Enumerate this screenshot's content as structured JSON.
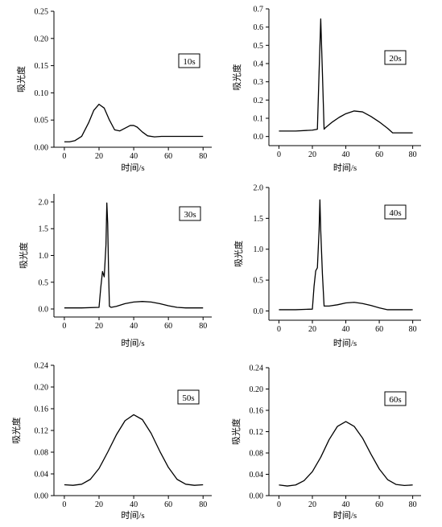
{
  "chart_data": [
    {
      "type": "line",
      "annotation": "10s",
      "xlabel": "时间/s",
      "ylabel": "吸光度",
      "xlim": [
        -6,
        85
      ],
      "ylim": [
        0,
        0.25
      ],
      "xticks": [
        0,
        20,
        40,
        60,
        80
      ],
      "yticks": [
        0.0,
        0.05,
        0.1,
        0.15,
        0.2,
        0.25
      ],
      "ytick_labels": [
        "0.00",
        "0.05",
        "0.10",
        "0.15",
        "0.20",
        "0.25"
      ],
      "series": [
        {
          "x": [
            0,
            3,
            6,
            10,
            14,
            17,
            20,
            23,
            26,
            29,
            32,
            35,
            38,
            40,
            42,
            45,
            48,
            52,
            56,
            60,
            70,
            80
          ],
          "y": [
            0.01,
            0.01,
            0.012,
            0.02,
            0.045,
            0.068,
            0.079,
            0.072,
            0.05,
            0.032,
            0.03,
            0.035,
            0.04,
            0.04,
            0.037,
            0.028,
            0.021,
            0.019,
            0.02,
            0.02,
            0.02,
            0.02
          ]
        }
      ]
    },
    {
      "type": "line",
      "annotation": "20s",
      "xlabel": "时间/s",
      "ylabel": "吸光度",
      "xlim": [
        -6,
        85
      ],
      "ylim": [
        -0.05,
        0.7
      ],
      "xticks": [
        0,
        20,
        40,
        60,
        80
      ],
      "yticks": [
        0.0,
        0.1,
        0.2,
        0.3,
        0.4,
        0.5,
        0.6,
        0.7
      ],
      "ytick_labels": [
        "0.0",
        "0.1",
        "0.2",
        "0.3",
        "0.4",
        "0.5",
        "0.6",
        "0.7"
      ],
      "series": [
        {
          "x": [
            0,
            10,
            20,
            23,
            24,
            25,
            26,
            27,
            28,
            32,
            36,
            40,
            45,
            50,
            55,
            60,
            65,
            68,
            80
          ],
          "y": [
            0.03,
            0.03,
            0.035,
            0.04,
            0.35,
            0.645,
            0.35,
            0.04,
            0.05,
            0.08,
            0.105,
            0.125,
            0.14,
            0.135,
            0.11,
            0.08,
            0.045,
            0.02,
            0.02
          ]
        }
      ]
    },
    {
      "type": "line",
      "annotation": "30s",
      "xlabel": "时间/s",
      "ylabel": "吸光度",
      "xlim": [
        -6,
        85
      ],
      "ylim": [
        -0.15,
        2.15
      ],
      "xticks": [
        0,
        20,
        40,
        60,
        80
      ],
      "yticks": [
        0.0,
        0.5,
        1.0,
        1.5,
        2.0
      ],
      "ytick_labels": [
        "0.0",
        "0.5",
        "1.0",
        "1.5",
        "2.0"
      ],
      "series": [
        {
          "x": [
            0,
            10,
            20,
            21,
            22,
            22.5,
            23,
            24,
            24.5,
            25,
            25.5,
            26,
            27,
            30,
            35,
            40,
            45,
            50,
            55,
            60,
            65,
            70,
            80
          ],
          "y": [
            0.02,
            0.02,
            0.03,
            0.4,
            0.7,
            0.65,
            0.6,
            1.2,
            1.98,
            1.6,
            0.7,
            0.05,
            0.03,
            0.05,
            0.1,
            0.13,
            0.14,
            0.13,
            0.1,
            0.06,
            0.03,
            0.02,
            0.02
          ]
        }
      ]
    },
    {
      "type": "line",
      "annotation": "40s",
      "xlabel": "时间/s",
      "ylabel": "吸光度",
      "xlim": [
        -6,
        85
      ],
      "ylim": [
        -0.15,
        2.0
      ],
      "xticks": [
        0,
        20,
        40,
        60,
        80
      ],
      "yticks": [
        0.0,
        0.5,
        1.0,
        1.5,
        2.0
      ],
      "ytick_labels": [
        "0.0",
        "0.5",
        "1.0",
        "1.5",
        "2.0"
      ],
      "series": [
        {
          "x": [
            0,
            10,
            20,
            21,
            22,
            23,
            24,
            24.5,
            25,
            26,
            27,
            30,
            35,
            40,
            45,
            50,
            55,
            60,
            65,
            70,
            80
          ],
          "y": [
            0.02,
            0.02,
            0.03,
            0.4,
            0.65,
            0.7,
            1.3,
            1.8,
            1.3,
            0.6,
            0.08,
            0.08,
            0.1,
            0.13,
            0.14,
            0.12,
            0.09,
            0.05,
            0.02,
            0.02,
            0.02
          ]
        }
      ]
    },
    {
      "type": "line",
      "annotation": "50s",
      "xlabel": "时间/s",
      "ylabel": "吸光度",
      "xlim": [
        -6,
        85
      ],
      "ylim": [
        0,
        0.24
      ],
      "xticks": [
        0,
        20,
        40,
        60,
        80
      ],
      "yticks": [
        0.0,
        0.04,
        0.08,
        0.12,
        0.16,
        0.2,
        0.24
      ],
      "ytick_labels": [
        "0.00",
        "0.04",
        "0.08",
        "0.12",
        "0.16",
        "0.20",
        "0.24"
      ],
      "series": [
        {
          "x": [
            0,
            5,
            10,
            15,
            20,
            25,
            30,
            35,
            40,
            45,
            50,
            55,
            60,
            65,
            70,
            75,
            80
          ],
          "y": [
            0.02,
            0.019,
            0.021,
            0.03,
            0.05,
            0.08,
            0.112,
            0.138,
            0.149,
            0.14,
            0.115,
            0.082,
            0.052,
            0.03,
            0.021,
            0.019,
            0.02
          ]
        }
      ]
    },
    {
      "type": "line",
      "annotation": "60s",
      "xlabel": "时间/s",
      "ylabel": "吸光度",
      "xlim": [
        -6,
        85
      ],
      "ylim": [
        0,
        0.24
      ],
      "xticks": [
        0,
        20,
        40,
        60,
        80
      ],
      "yticks": [
        0.0,
        0.04,
        0.08,
        0.12,
        0.16,
        0.2,
        0.24
      ],
      "ytick_labels": [
        "0.00",
        "0.04",
        "0.08",
        "0.12",
        "0.16",
        "0.20",
        "0.24"
      ],
      "series": [
        {
          "x": [
            0,
            5,
            10,
            15,
            20,
            25,
            30,
            35,
            40,
            45,
            50,
            55,
            60,
            65,
            70,
            75,
            80
          ],
          "y": [
            0.02,
            0.018,
            0.02,
            0.028,
            0.045,
            0.072,
            0.105,
            0.13,
            0.139,
            0.13,
            0.108,
            0.078,
            0.05,
            0.03,
            0.021,
            0.019,
            0.02
          ]
        }
      ]
    }
  ]
}
